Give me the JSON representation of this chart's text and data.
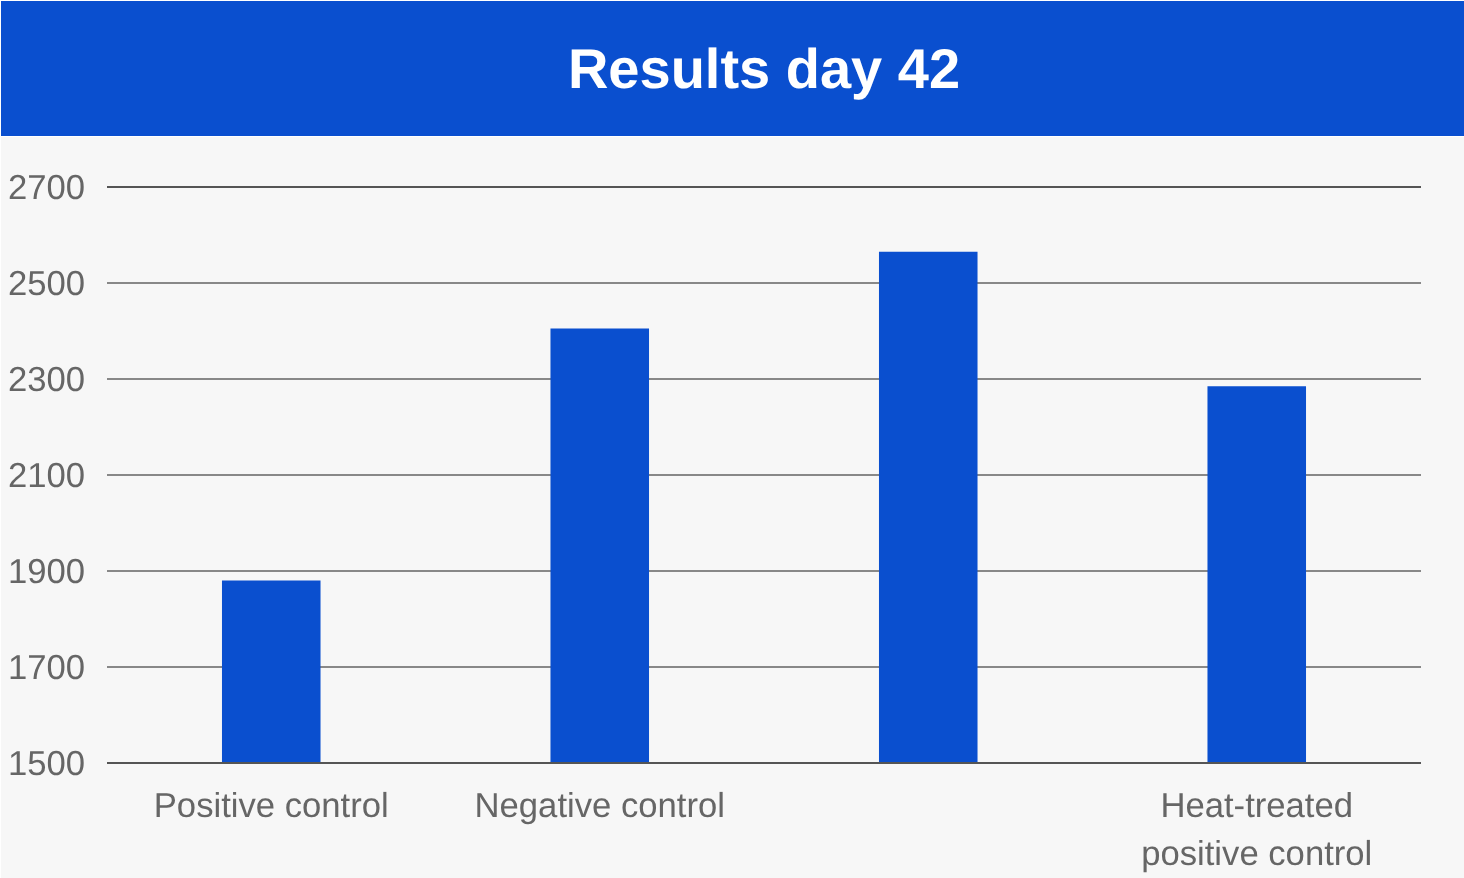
{
  "chart_data": {
    "type": "bar",
    "title": "Results day 42",
    "categories": [
      "Positive control",
      "Negative control",
      null,
      "Heat-treated\npositive control"
    ],
    "values": [
      1880,
      2405,
      2565,
      2285
    ],
    "color": "#0a4fcf",
    "ylim": [
      1500,
      2700
    ],
    "yticks": [
      1500,
      1700,
      1900,
      2100,
      2300,
      2500,
      2700
    ],
    "grid": "y"
  }
}
